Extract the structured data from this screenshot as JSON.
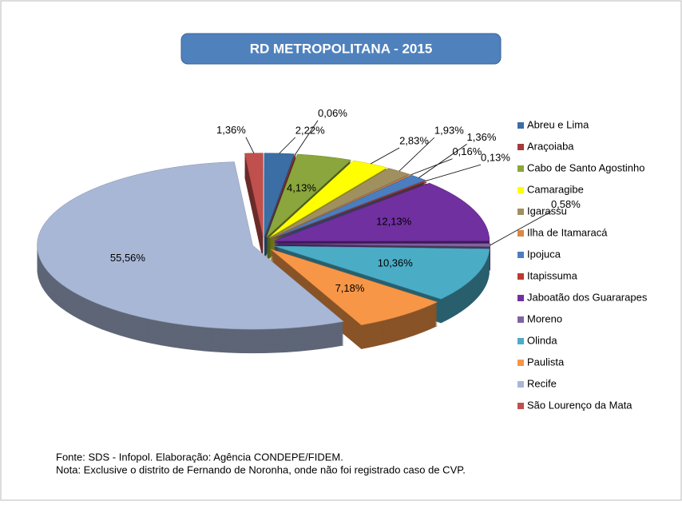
{
  "chart_data": {
    "type": "pie",
    "title": "RD METROPOLITANA - 2015",
    "categories": [
      "Abreu e Lima",
      "Araçoiaba",
      "Cabo de Santo Agostinho",
      "Camaragibe",
      "Igarassu",
      "Ilha de Itamaracá",
      "Ipojuca",
      "Itapissuma",
      "Jaboatão dos Guararapes",
      "Moreno",
      "Olinda",
      "Paulista",
      "Recife",
      "São Lourenço da Mata"
    ],
    "values": [
      2.22,
      0.06,
      4.13,
      2.83,
      1.93,
      0.16,
      1.36,
      0.13,
      12.13,
      0.58,
      10.36,
      7.18,
      55.56,
      1.36
    ],
    "value_labels": [
      "2,22%",
      "0,06%",
      "4,13%",
      "2,83%",
      "1,93%",
      "0,16%",
      "1,36%",
      "0,13%",
      "12,13%",
      "0,58%",
      "10,36%",
      "7,18%",
      "55,56%",
      "1,36%"
    ],
    "colors": [
      "#3a6ea5",
      "#a33b3b",
      "#8aa63c",
      "#ffff00",
      "#a09060",
      "#d9884a",
      "#4a7ec0",
      "#c0392b",
      "#7030a0",
      "#8064a2",
      "#4bacc6",
      "#f79646",
      "#a9b7d6",
      "#c0504d"
    ],
    "legend": "right",
    "source": "Fonte: SDS - Infopol. Elaboração: Agência CONDEPE/FIDEM.",
    "note": "Nota: Exclusive  o distrito de Fernando de Noronha, onde não foi registrado caso de CVP."
  }
}
